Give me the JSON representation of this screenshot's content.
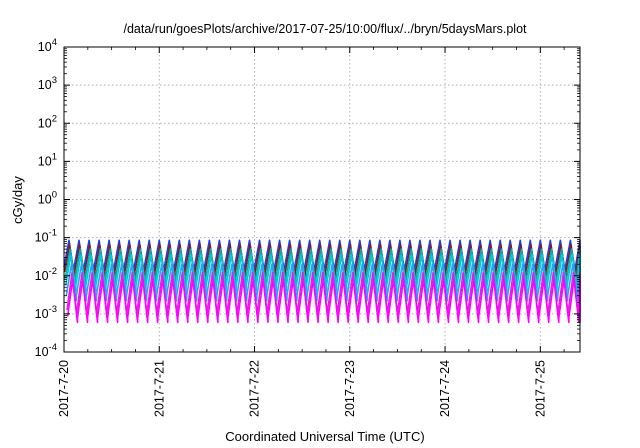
{
  "chart_data": {
    "type": "line",
    "title": "/data/run/goesPlots/archive/2017-07-25/10:00/flux/../bryn/5daysMars.plot",
    "xlabel": "Coordinated Universal Time (UTC)",
    "ylabel": "cGy/day",
    "yscale": "log",
    "ylim": [
      0.0001,
      10000
    ],
    "y_ticks": [
      {
        "value": 0.0001,
        "exp": "-4"
      },
      {
        "value": 0.001,
        "exp": "-3"
      },
      {
        "value": 0.01,
        "exp": "-2"
      },
      {
        "value": 0.1,
        "exp": "-1"
      },
      {
        "value": 1,
        "exp": "0"
      },
      {
        "value": 10,
        "exp": "1"
      },
      {
        "value": 100,
        "exp": "2"
      },
      {
        "value": 1000,
        "exp": "3"
      },
      {
        "value": 10000,
        "exp": "4"
      }
    ],
    "y_tick_base": "10",
    "xlim": [
      "2017-07-20",
      "2017-07-25 10:00"
    ],
    "x_ticks": [
      "2017-7-20",
      "2017-7-21",
      "2017-7-22",
      "2017-7-23",
      "2017-7-24",
      "2017-7-25"
    ],
    "grid": true,
    "legend": "none",
    "pattern": {
      "sawtooth_cycles_per_day": 9.5,
      "series": [
        {
          "color": "#1e3ce6",
          "max": 0.085,
          "min": 0.012
        },
        {
          "color": "#8b1a1a",
          "max": 0.065,
          "min": 0.009
        },
        {
          "color": "#00b0b0",
          "max": 0.05,
          "min": 0.006
        },
        {
          "color": "#00c8d8",
          "max": 0.035,
          "min": 0.004
        },
        {
          "color": "#2aa0ff",
          "max": 0.02,
          "min": 0.0022
        },
        {
          "color": "#e020e0",
          "max": 0.012,
          "min": 0.0009
        },
        {
          "color": "#ff00ff",
          "max": 0.008,
          "min": 0.0006
        }
      ]
    }
  }
}
